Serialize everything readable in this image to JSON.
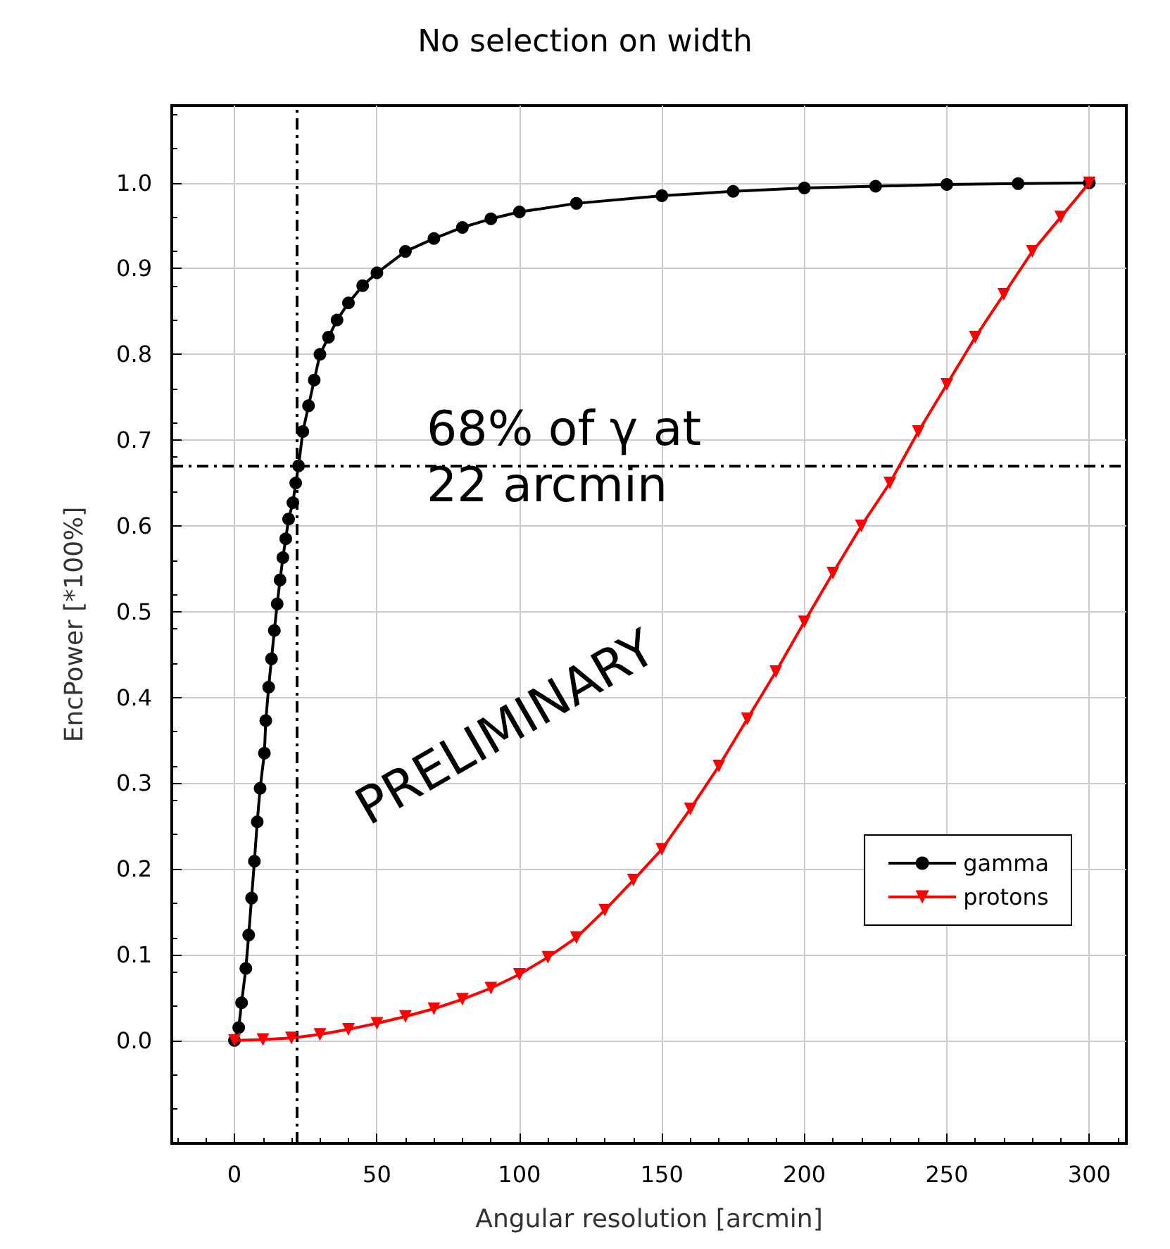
{
  "chart_data": {
    "type": "line",
    "title": "No selection on width",
    "xlabel": "Angular resolution [arcmin]",
    "ylabel": "EncPower [*100%]",
    "xlim": [
      -22,
      313
    ],
    "xticks": [
      0,
      50,
      100,
      150,
      200,
      250,
      300
    ],
    "ylim": [
      -0.12,
      1.09
    ],
    "yticks": [
      {
        "value": 0,
        "label": "0.0"
      },
      {
        "value": 0.1,
        "label": "0.1"
      },
      {
        "value": 0.2,
        "label": "0.2"
      },
      {
        "value": 0.3,
        "label": "0.3"
      },
      {
        "value": 0.4,
        "label": "0.4"
      },
      {
        "value": 0.5,
        "label": "0.5"
      },
      {
        "value": 0.6,
        "label": "0.6"
      },
      {
        "value": 0.7,
        "label": "0.7"
      },
      {
        "value": 0.8,
        "label": "0.8"
      },
      {
        "value": 0.9,
        "label": "0.9"
      },
      {
        "value": 1,
        "label": "1.0"
      }
    ],
    "grid": true,
    "legend": "bottom right",
    "series": [
      {
        "name": "gamma",
        "color": "#000000",
        "marker": "circle",
        "x": [
          0,
          1.5,
          2.5,
          4,
          5,
          6,
          7,
          8,
          9,
          10.5,
          11,
          12,
          13,
          14,
          15,
          16,
          17,
          18,
          19,
          20.5,
          21.5,
          22.5,
          24,
          26,
          28,
          30,
          33,
          36,
          40,
          45,
          50,
          60,
          70,
          80,
          90,
          100,
          120,
          150,
          175,
          200,
          225,
          250,
          275,
          300
        ],
        "values": [
          0,
          0.015,
          0.044,
          0.084,
          0.123,
          0.166,
          0.209,
          0.255,
          0.294,
          0.335,
          0.373,
          0.412,
          0.445,
          0.478,
          0.509,
          0.537,
          0.563,
          0.585,
          0.608,
          0.627,
          0.65,
          0.67,
          0.71,
          0.74,
          0.77,
          0.8,
          0.82,
          0.84,
          0.86,
          0.88,
          0.895,
          0.92,
          0.935,
          0.948,
          0.958,
          0.966,
          0.976,
          0.985,
          0.99,
          0.994,
          0.996,
          0.998,
          0.999,
          1.0
        ]
      },
      {
        "name": "protons",
        "color": "#ff0000",
        "marker": "triangle-down",
        "x": [
          0,
          10,
          20,
          30,
          40,
          50,
          60,
          70,
          80,
          90,
          100,
          110,
          120,
          130,
          140,
          150,
          160,
          170,
          180,
          190,
          200,
          210,
          220,
          230,
          240,
          250,
          260,
          270,
          280,
          290,
          300
        ],
        "values": [
          0,
          0.001,
          0.003,
          0.007,
          0.013,
          0.02,
          0.028,
          0.037,
          0.048,
          0.061,
          0.077,
          0.097,
          0.12,
          0.152,
          0.187,
          0.223,
          0.27,
          0.32,
          0.375,
          0.43,
          0.488,
          0.545,
          0.6,
          0.65,
          0.71,
          0.765,
          0.82,
          0.87,
          0.92,
          0.96,
          1.0
        ]
      }
    ],
    "ref_lines": [
      {
        "axis": "y",
        "value": 0.67,
        "line_style": "dashed",
        "color": "#000000"
      },
      {
        "axis": "x",
        "value": 22,
        "line_style": "dashed",
        "color": "#000000"
      }
    ],
    "annotations": [
      {
        "text": "68% of γ at 22 arcmin",
        "x": 22,
        "y": 0.67
      },
      "PRELIMINARY"
    ]
  }
}
